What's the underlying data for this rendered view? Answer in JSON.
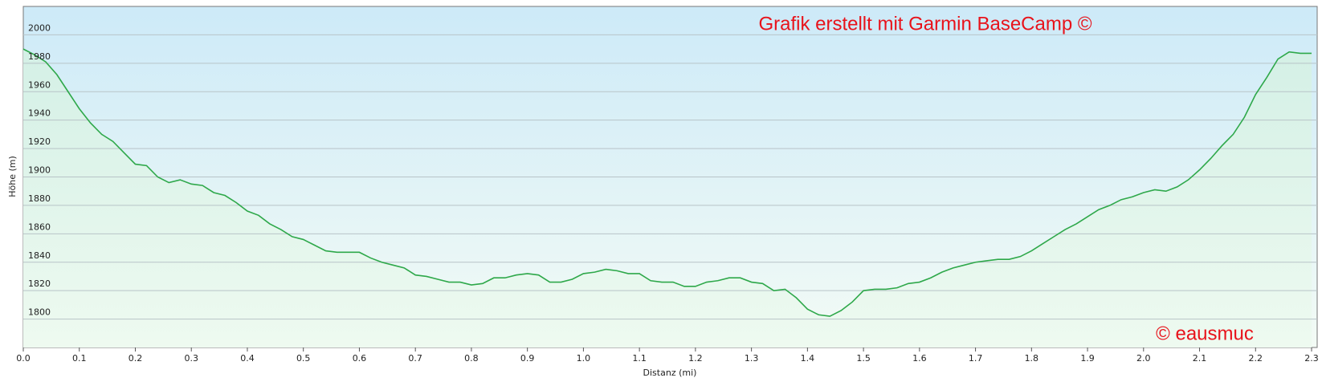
{
  "chart_data": {
    "type": "area",
    "y_label": "Höhe (m)",
    "x_label": "Distanz  (mi)",
    "annotations": [
      "Grafik erstellt mit Garmin BaseCamp  ©",
      "© eausmuc"
    ],
    "color": "#2ea84a",
    "grid": true,
    "xlim": [
      0,
      2.31
    ],
    "ylim": [
      1780,
      2020
    ],
    "xticks": [
      {
        "value": 0,
        "label": "0.0"
      },
      0.1,
      0.2,
      0.3,
      0.4,
      0.5,
      0.6,
      0.7,
      0.8,
      0.9,
      {
        "value": 1,
        "label": "1.0"
      },
      1.1,
      1.2,
      1.3,
      1.4,
      1.5,
      1.6,
      1.7,
      1.8,
      1.9,
      {
        "value": 2,
        "label": "2.0"
      },
      2.1,
      2.2,
      2.3
    ],
    "yticks": [
      1800,
      1820,
      1840,
      1860,
      1880,
      1900,
      1920,
      1940,
      1960,
      1980,
      2000
    ],
    "x": [
      0,
      0.02,
      0.04,
      0.06,
      0.08,
      0.1,
      0.12,
      0.14,
      0.16,
      0.18,
      0.2,
      0.22,
      0.24,
      0.26,
      0.28,
      0.3,
      0.32,
      0.34,
      0.36,
      0.38,
      0.4,
      0.42,
      0.44,
      0.46,
      0.48,
      0.5,
      0.52,
      0.54,
      0.56,
      0.58,
      0.6,
      0.62,
      0.64,
      0.66,
      0.68,
      0.7,
      0.72,
      0.74,
      0.76,
      0.78,
      0.8,
      0.82,
      0.84,
      0.86,
      0.88,
      0.9,
      0.92,
      0.94,
      0.96,
      0.98,
      1.0,
      1.02,
      1.04,
      1.06,
      1.08,
      1.1,
      1.12,
      1.14,
      1.16,
      1.18,
      1.2,
      1.22,
      1.24,
      1.26,
      1.28,
      1.3,
      1.32,
      1.34,
      1.36,
      1.38,
      1.4,
      1.42,
      1.44,
      1.46,
      1.48,
      1.5,
      1.52,
      1.54,
      1.56,
      1.58,
      1.6,
      1.62,
      1.64,
      1.66,
      1.68,
      1.7,
      1.72,
      1.74,
      1.76,
      1.78,
      1.8,
      1.82,
      1.84,
      1.86,
      1.88,
      1.9,
      1.92,
      1.94,
      1.96,
      1.98,
      2.0,
      2.02,
      2.04,
      2.06,
      2.08,
      2.1,
      2.12,
      2.14,
      2.16,
      2.18,
      2.2,
      2.22,
      2.24,
      2.26,
      2.28,
      2.3
    ],
    "values": [
      1990,
      1986,
      1981,
      1972,
      1960,
      1948,
      1938,
      1930,
      1925,
      1917,
      1909,
      1908,
      1900,
      1896,
      1898,
      1895,
      1894,
      1889,
      1887,
      1882,
      1876,
      1873,
      1867,
      1863,
      1858,
      1856,
      1852,
      1848,
      1847,
      1847,
      1847,
      1843,
      1840,
      1838,
      1836,
      1831,
      1830,
      1828,
      1826,
      1826,
      1824,
      1825,
      1829,
      1829,
      1831,
      1832,
      1831,
      1826,
      1826,
      1828,
      1832,
      1833,
      1835,
      1834,
      1832,
      1832,
      1827,
      1826,
      1826,
      1823,
      1823,
      1826,
      1827,
      1829,
      1829,
      1826,
      1825,
      1820,
      1821,
      1815,
      1807,
      1803,
      1802,
      1806,
      1812,
      1820,
      1821,
      1821,
      1822,
      1825,
      1826,
      1829,
      1833,
      1836,
      1838,
      1840,
      1841,
      1842,
      1842,
      1844,
      1848,
      1853,
      1858,
      1863,
      1867,
      1872,
      1877,
      1880,
      1884,
      1886,
      1889,
      1891,
      1890,
      1893,
      1898,
      1905,
      1913,
      1922,
      1930,
      1942,
      1958,
      1970,
      1983,
      1988,
      1987,
      1987
    ]
  }
}
